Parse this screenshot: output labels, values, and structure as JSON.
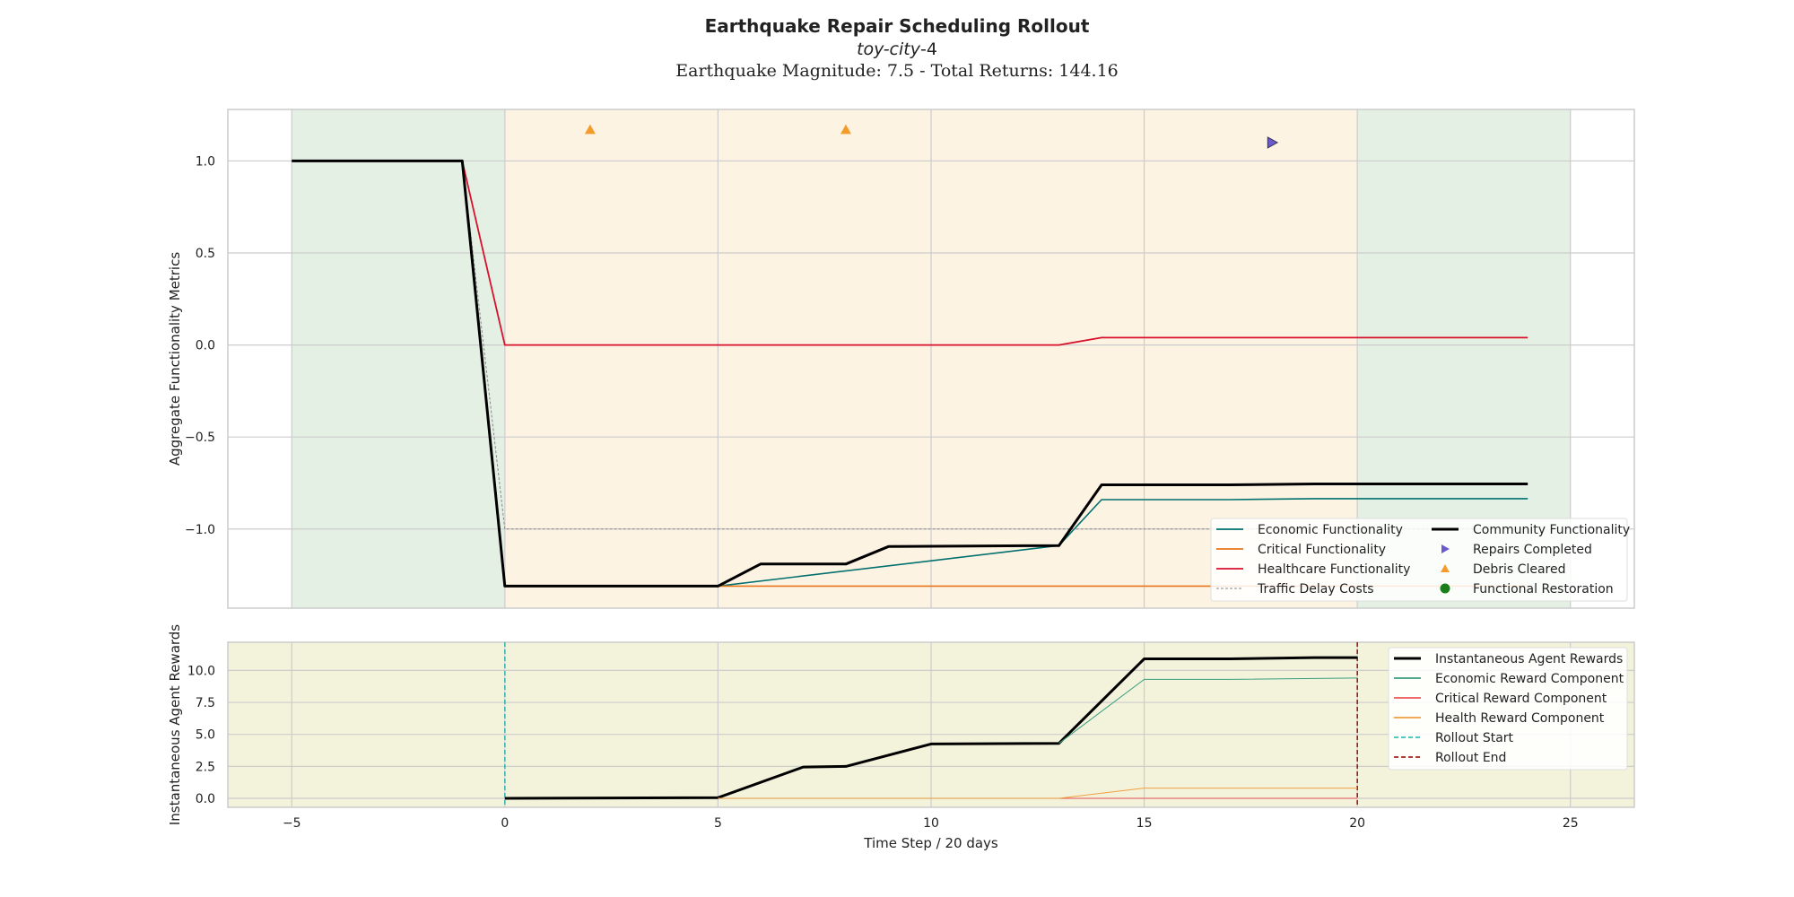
{
  "title": "Earthquake Repair Scheduling Rollout",
  "subtitle_italic": "toy-city",
  "subtitle_number": "-4",
  "subtitle2": "Earthquake Magnitude: 7.5 - Total Returns: 144.16",
  "colors": {
    "green_region": "#e5f0e5",
    "orange_region": "#fdf3e3",
    "reward_bg": "#f3f3dc",
    "economic": "#00706e",
    "critical": "#e8751a",
    "healthcare": "#d8102c",
    "traffic": "#888888",
    "community": "#000000",
    "repairs": "#6a5acd",
    "debris": "#f39c2b",
    "restoration": "#1a7f1a",
    "econ_reward": "#3a9e7e",
    "crit_reward": "#ee5555",
    "health_reward": "#f0a040",
    "rollout_start": "#20b2aa",
    "rollout_end": "#8b0000"
  },
  "chart_data": [
    {
      "type": "line",
      "name": "top",
      "ylabel": "Aggregate Functionality Metrics",
      "xlim": [
        -6.5,
        26.5
      ],
      "ylim": [
        -1.43,
        1.28
      ],
      "xticks": [
        -5,
        0,
        5,
        10,
        15,
        20,
        25
      ],
      "yticks": [
        -1.0,
        -0.5,
        0.0,
        0.5,
        1.0
      ],
      "ytick_labels": [
        "−1.0",
        "−0.5",
        "0.0",
        "0.5",
        "1.0"
      ],
      "regions": [
        {
          "x0": -5,
          "x1": 0,
          "kind": "green"
        },
        {
          "x0": 0,
          "x1": 20,
          "kind": "orange"
        },
        {
          "x0": 20,
          "x1": 25,
          "kind": "green"
        }
      ],
      "series": [
        {
          "name": "Economic Functionality",
          "key": "economic",
          "x": [
            -5,
            -1,
            0,
            5,
            13,
            14,
            17,
            19,
            24
          ],
          "y": [
            1.0,
            1.0,
            -1.31,
            -1.31,
            -1.09,
            -0.84,
            -0.84,
            -0.835,
            -0.835
          ]
        },
        {
          "name": "Critical Functionality",
          "key": "critical",
          "x": [
            -5,
            -1,
            0,
            24
          ],
          "y": [
            1.0,
            1.0,
            -1.31,
            -1.31
          ]
        },
        {
          "name": "Healthcare Functionality",
          "key": "healthcare",
          "x": [
            -5,
            -1,
            0,
            13,
            14,
            24
          ],
          "y": [
            1.0,
            1.0,
            0.0,
            0.0,
            0.04,
            0.04
          ]
        },
        {
          "name": "Traffic Delay Costs",
          "key": "traffic",
          "x": [
            -5,
            -1,
            0,
            24
          ],
          "y": [
            1.0,
            1.0,
            -1.0,
            -1.0
          ]
        },
        {
          "name": "Community Functionality",
          "key": "community",
          "x": [
            -5,
            -1,
            0,
            2,
            5,
            6,
            8,
            9,
            13,
            14,
            17,
            19,
            24
          ],
          "y": [
            1.0,
            1.0,
            -1.31,
            -1.31,
            -1.31,
            -1.19,
            -1.19,
            -1.095,
            -1.09,
            -0.76,
            -0.76,
            -0.755,
            -0.755
          ]
        }
      ],
      "markers": [
        {
          "name": "Repairs Completed",
          "key": "repairs",
          "shape": "triangle-right",
          "points": [
            {
              "x": 18,
              "y": 1.1
            }
          ]
        },
        {
          "name": "Debris Cleared",
          "key": "debris",
          "shape": "triangle-up",
          "points": [
            {
              "x": 2,
              "y": 1.17
            },
            {
              "x": 8,
              "y": 1.17
            }
          ]
        },
        {
          "name": "Functional Restoration",
          "key": "restoration",
          "shape": "circle",
          "points": []
        }
      ],
      "legend": {
        "placement": "lower-right",
        "col1": [
          {
            "label": "Economic Functionality",
            "key": "economic",
            "style": "line"
          },
          {
            "label": "Critical Functionality",
            "key": "critical",
            "style": "line"
          },
          {
            "label": "Healthcare Functionality",
            "key": "healthcare",
            "style": "line"
          },
          {
            "label": "Traffic Delay Costs",
            "key": "traffic",
            "style": "dotted"
          }
        ],
        "col2": [
          {
            "label": "Community Functionality",
            "key": "community",
            "style": "thick"
          },
          {
            "label": "Repairs Completed",
            "key": "repairs",
            "style": "triangle-right"
          },
          {
            "label": "Debris Cleared",
            "key": "debris",
            "style": "triangle-up"
          },
          {
            "label": "Functional Restoration",
            "key": "restoration",
            "style": "circle"
          }
        ]
      }
    },
    {
      "type": "line",
      "name": "bottom",
      "ylabel": "Instantaneous Agent Rewards",
      "xlabel": "Time Step / 20 days",
      "xlim": [
        -6.5,
        26.5
      ],
      "ylim": [
        -0.7,
        12.2
      ],
      "xticks": [
        -5,
        0,
        5,
        10,
        15,
        20,
        25
      ],
      "xtick_labels": [
        "−5",
        "0",
        "5",
        "10",
        "15",
        "20",
        "25"
      ],
      "yticks": [
        0.0,
        2.5,
        5.0,
        7.5,
        10.0
      ],
      "ytick_labels": [
        "0.0",
        "2.5",
        "5.0",
        "7.5",
        "10.0"
      ],
      "series": [
        {
          "name": "Instantaneous Agent Rewards",
          "key": "community",
          "x": [
            0,
            5,
            7,
            8,
            10,
            13,
            15,
            17,
            19,
            20
          ],
          "y": [
            0.0,
            0.05,
            2.45,
            2.5,
            4.25,
            4.3,
            10.9,
            10.9,
            11.0,
            11.0
          ]
        },
        {
          "name": "Economic Reward Component",
          "key": "econ_reward",
          "x": [
            13,
            15,
            17,
            20
          ],
          "y": [
            4.3,
            9.3,
            9.3,
            9.4
          ]
        },
        {
          "name": "Critical Reward Component",
          "key": "crit_reward",
          "x": [
            5,
            20
          ],
          "y": [
            0.0,
            0.0
          ]
        },
        {
          "name": "Health Reward Component",
          "key": "health_reward",
          "x": [
            5,
            13,
            15,
            20
          ],
          "y": [
            0.0,
            0.0,
            0.8,
            0.8
          ]
        }
      ],
      "vlines": [
        {
          "name": "Rollout Start",
          "key": "rollout_start",
          "x": 0
        },
        {
          "name": "Rollout End",
          "key": "rollout_end",
          "x": 20
        }
      ],
      "legend": {
        "placement": "top-right",
        "items": [
          {
            "label": "Instantaneous Agent Rewards",
            "key": "community",
            "style": "thick"
          },
          {
            "label": "Economic Reward Component",
            "key": "econ_reward",
            "style": "line"
          },
          {
            "label": "Critical Reward Component",
            "key": "crit_reward",
            "style": "line"
          },
          {
            "label": "Health Reward Component",
            "key": "health_reward",
            "style": "line"
          },
          {
            "label": "Rollout Start",
            "key": "rollout_start",
            "style": "dashed"
          },
          {
            "label": "Rollout End",
            "key": "rollout_end",
            "style": "dashed"
          }
        ]
      }
    }
  ]
}
